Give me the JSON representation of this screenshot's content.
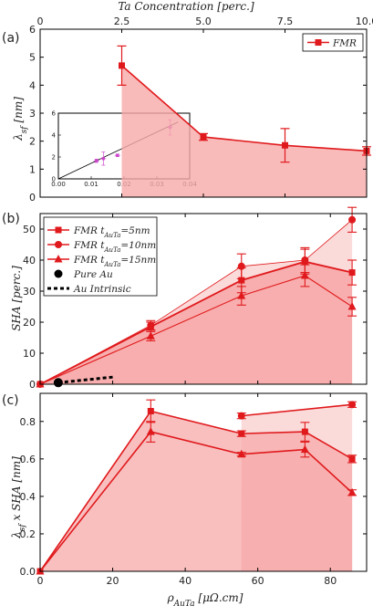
{
  "colors": {
    "series": "#e0191c",
    "fill": "#f7a9a9",
    "fill_light": "#fbdada",
    "au": "#000000",
    "inset": "#cc44cc"
  },
  "chart_data": [
    {
      "type": "line",
      "panel_label": "(a)",
      "ylabel": "λsf [nm]",
      "ylim": [
        0,
        6
      ],
      "xlim": [
        0,
        10
      ],
      "yticks": [
        "0",
        "1",
        "2",
        "3",
        "4",
        "5",
        "6"
      ],
      "top_axis": {
        "label": "Ta Concentration [perc.]",
        "ticks": [
          "0",
          "2.5",
          "5.0",
          "7.5",
          "10.0"
        ]
      },
      "legend": "top-right",
      "series": [
        {
          "name": "FMR",
          "x": [
            2.5,
            5.0,
            7.5,
            10.0
          ],
          "y": [
            4.7,
            2.15,
            1.85,
            1.65
          ],
          "err": [
            0.7,
            0.12,
            0.6,
            0.15
          ]
        }
      ],
      "inset": {
        "ylabel": "λsf [nm]",
        "xlabel": "σAuTa [μΩ.cm]⁻¹",
        "xlim": [
          0,
          0.04
        ],
        "ylim": [
          0,
          6
        ],
        "xticks": [
          "0.00",
          "0.01",
          "0.02",
          "0.03",
          "0.04"
        ],
        "yticks": [
          "0",
          "2",
          "4",
          "6"
        ],
        "points": [
          {
            "x": 0.0116,
            "y": 1.65,
            "err": 0.15
          },
          {
            "x": 0.0137,
            "y": 1.85,
            "err": 0.6
          },
          {
            "x": 0.018,
            "y": 2.15,
            "err": 0.12
          },
          {
            "x": 0.034,
            "y": 4.7,
            "err": 0.7
          }
        ]
      }
    },
    {
      "type": "line",
      "panel_label": "(b)",
      "ylabel": "SHA [perc.]",
      "ylim": [
        0,
        55
      ],
      "xlim": [
        0,
        90
      ],
      "yticks": [
        "0",
        "10",
        "20",
        "30",
        "40",
        "50"
      ],
      "legend": "top-left",
      "series": [
        {
          "name": "FMR tAuTa=5nm",
          "marker": "square",
          "x": [
            0,
            30.5,
            55.5,
            73,
            86
          ],
          "y": [
            0,
            18.5,
            33.5,
            39.5,
            36
          ],
          "err": [
            0,
            1.5,
            4,
            4,
            4
          ]
        },
        {
          "name": "FMR tAuTa=10nm",
          "marker": "circle",
          "x": [
            0,
            30.5,
            55.5,
            73,
            86
          ],
          "y": [
            0,
            19,
            38,
            40,
            53
          ],
          "err": [
            0,
            1.5,
            4,
            4,
            4
          ]
        },
        {
          "name": "FMR tAuTa=15nm",
          "marker": "triangle",
          "x": [
            0,
            30.5,
            55.5,
            73,
            86
          ],
          "y": [
            0,
            15.5,
            28.5,
            35,
            25
          ],
          "err": [
            0,
            1.5,
            3,
            3.5,
            3
          ]
        }
      ],
      "pure_au": {
        "name": "Pure Au",
        "x": 5,
        "y": 0.5
      },
      "intrinsic": {
        "name": "Au Intrinsic",
        "x": [
          5,
          20
        ],
        "y": [
          0.5,
          2.3
        ]
      }
    },
    {
      "type": "line",
      "panel_label": "(c)",
      "ylabel": "λsf x SHA [nm]",
      "xlabel": "ρAuTa [μΩ.cm]",
      "ylim": [
        0,
        0.95
      ],
      "xlim": [
        0,
        90
      ],
      "xticks": [
        "0",
        "20",
        "40",
        "60",
        "80"
      ],
      "yticks": [
        "0.0",
        "0.2",
        "0.4",
        "0.6",
        "0.8"
      ],
      "series": [
        {
          "name": "FMR tAuTa=5nm",
          "marker": "square",
          "x": [
            0,
            30.5,
            55.5,
            73,
            86
          ],
          "y": [
            0,
            0.855,
            0.735,
            0.745,
            0.6
          ],
          "err": [
            0,
            0.06,
            0.015,
            0.05,
            0.02
          ]
        },
        {
          "name": "FMR tAuTa=10nm",
          "marker": "circle",
          "x": [
            55.5,
            86
          ],
          "y": [
            0.83,
            0.89
          ],
          "err": [
            0.015,
            0.015
          ]
        },
        {
          "name": "FMR tAuTa=15nm",
          "marker": "triangle",
          "x": [
            0,
            30.5,
            55.5,
            73,
            86
          ],
          "y": [
            0,
            0.745,
            0.625,
            0.65,
            0.42
          ],
          "err": [
            0,
            0.055,
            0.01,
            0.04,
            0.015
          ]
        }
      ]
    }
  ]
}
